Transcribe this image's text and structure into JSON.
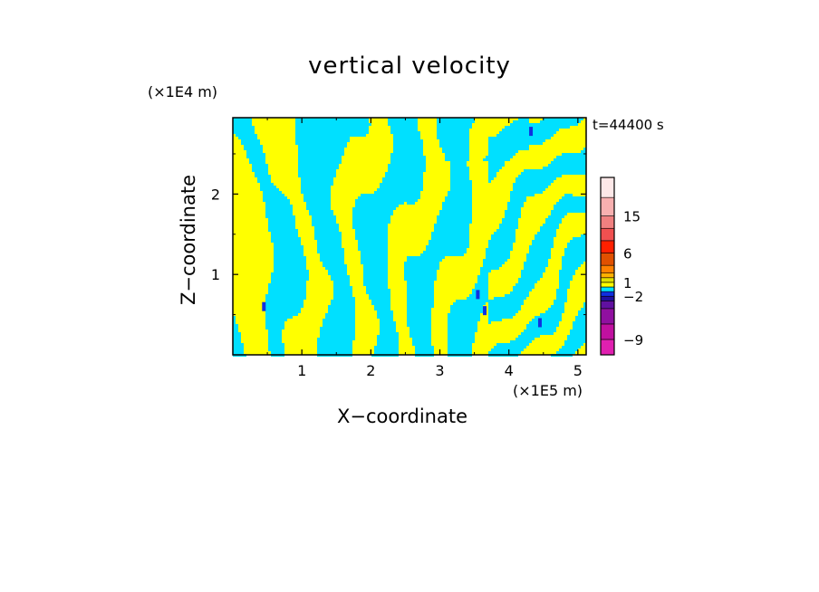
{
  "chart_data": {
    "type": "heatmap",
    "title": "vertical velocity",
    "xlabel": "X−coordinate",
    "ylabel": "Z−coordinate",
    "x_multiplier": "(×1E5 m)",
    "y_multiplier": "(×1E4 m)",
    "time_label": "t=44400 s",
    "xlim": [
      0,
      5.12
    ],
    "ylim": [
      0,
      2.95
    ],
    "x_ticks": [
      1,
      2,
      3,
      4,
      5
    ],
    "y_ticks": [
      1,
      2
    ],
    "x_tick_labels": [
      "1",
      "2",
      "3",
      "4",
      "5"
    ],
    "y_tick_labels": [
      "1",
      "2"
    ],
    "grid": false,
    "colorbar": {
      "levels": [
        -12,
        -9,
        -6,
        -4,
        -3,
        -2,
        -1,
        0,
        1,
        2,
        3,
        4,
        6,
        9,
        12,
        15,
        18,
        22
      ],
      "colors": [
        "#e020b0",
        "#c010a0",
        "#9010a0",
        "#6010a0",
        "#2010a0",
        "#1030e0",
        "#00e0ff",
        "#ffff00",
        "#e0e000",
        "#ffb000",
        "#ff8000",
        "#e05000",
        "#ff2000",
        "#f05050",
        "#f08080",
        "#f8b0b0",
        "#fde8e8"
      ],
      "labels": [
        "15",
        "6",
        "1",
        "−2",
        "−9"
      ],
      "label_values": [
        15,
        6,
        1,
        -2,
        -9
      ]
    },
    "dominant_values": {
      "cyan": "-1 to 0",
      "yellow": "0 to 1"
    }
  }
}
